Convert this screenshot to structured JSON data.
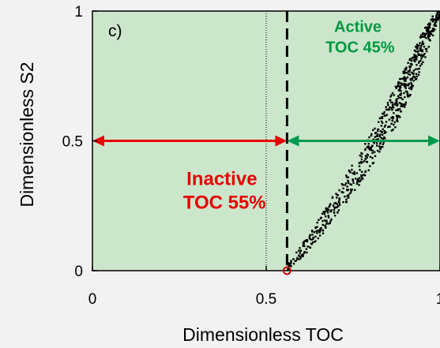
{
  "chart_data": {
    "type": "scatter",
    "panel_label": "c)",
    "xlabel": "Dimensionless TOC",
    "ylabel": "Dimensionless S2",
    "xlim": [
      0,
      1
    ],
    "ylim": [
      0,
      1
    ],
    "xticks": [
      {
        "value": 0,
        "label": "0"
      },
      {
        "value": 0.5,
        "label": "0.5"
      },
      {
        "value": 1,
        "label": "1"
      }
    ],
    "yticks": [
      {
        "value": 0,
        "label": "0"
      },
      {
        "value": 0.5,
        "label": "0.5"
      },
      {
        "value": 1,
        "label": "1"
      }
    ],
    "background_color": "#cce6cc",
    "grid": false,
    "threshold_x": 0.56,
    "midpoint_x": 0.5,
    "origin_marker": {
      "x": 0.56,
      "y": 0,
      "color": "#cc0000"
    },
    "ranges": [
      {
        "name": "inactive",
        "x_start": 0,
        "x_end": 0.56,
        "y": 0.5,
        "color": "#e60000"
      },
      {
        "name": "active",
        "x_start": 0.56,
        "x_end": 1,
        "y": 0.5,
        "color": "#00994d"
      }
    ],
    "annotations": {
      "inactive": {
        "lines": [
          "Inactive",
          "TOC 55%"
        ],
        "x": 0.38,
        "y": 0.29,
        "color": "#e60000"
      },
      "active": {
        "lines": [
          "Active",
          "TOC 45%"
        ],
        "x": 0.77,
        "y": 0.92,
        "color": "#009940"
      }
    },
    "scatter": {
      "color": "#000000",
      "point_count": 700,
      "trend": [
        {
          "x": 0.56,
          "y": 0
        },
        {
          "x": 0.66,
          "y": 0.17
        },
        {
          "x": 0.76,
          "y": 0.37
        },
        {
          "x": 0.85,
          "y": 0.57
        },
        {
          "x": 0.92,
          "y": 0.77
        },
        {
          "x": 0.97,
          "y": 0.93
        },
        {
          "x": 1.0,
          "y": 1.0
        }
      ],
      "spread_x": 0.02
    }
  }
}
